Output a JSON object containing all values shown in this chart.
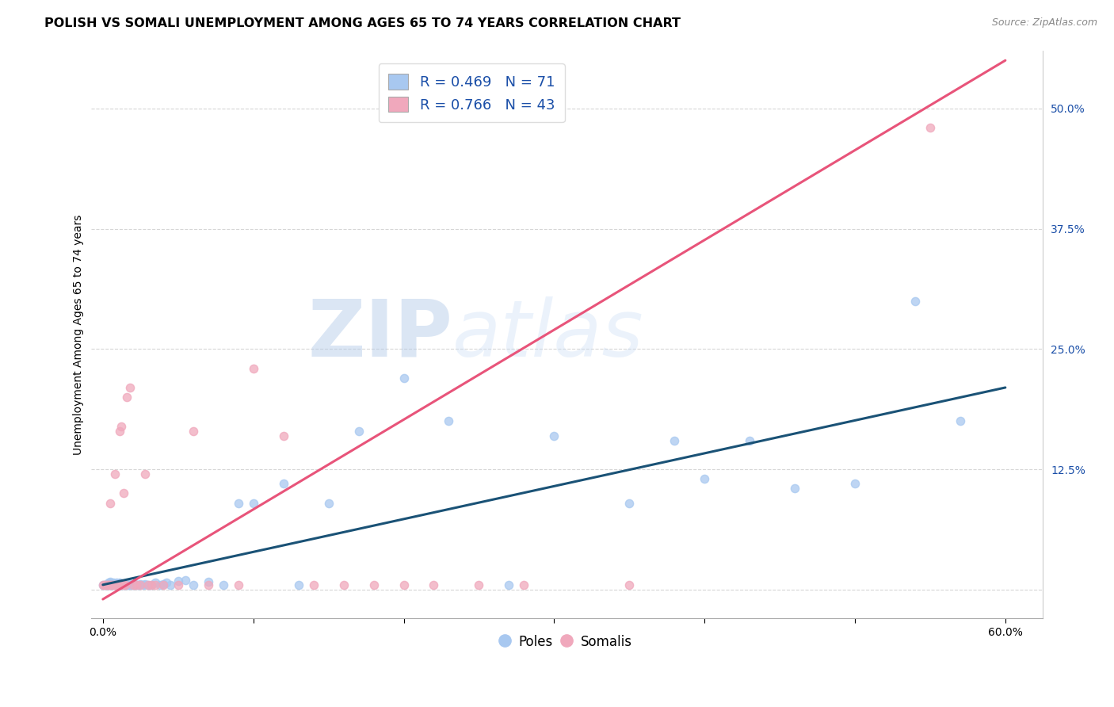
{
  "title": "POLISH VS SOMALI UNEMPLOYMENT AMONG AGES 65 TO 74 YEARS CORRELATION CHART",
  "source": "Source: ZipAtlas.com",
  "ylabel": "Unemployment Among Ages 65 to 74 years",
  "xlim_min": -0.008,
  "xlim_max": 0.625,
  "ylim_min": -0.03,
  "ylim_max": 0.56,
  "legend_label1": "Poles",
  "legend_label2": "Somalis",
  "blue_marker_color": "#A8C8F0",
  "pink_marker_color": "#F0A8BC",
  "blue_line_color": "#1A5276",
  "pink_line_color": "#E8547A",
  "blue_text_color": "#1B4FA8",
  "watermark_zip": "ZIP",
  "watermark_atlas": "atlas",
  "poles_x": [
    0.0,
    0.001,
    0.002,
    0.003,
    0.003,
    0.004,
    0.004,
    0.005,
    0.005,
    0.005,
    0.006,
    0.006,
    0.006,
    0.007,
    0.007,
    0.008,
    0.008,
    0.009,
    0.009,
    0.01,
    0.01,
    0.011,
    0.011,
    0.012,
    0.012,
    0.013,
    0.013,
    0.014,
    0.015,
    0.015,
    0.016,
    0.017,
    0.018,
    0.019,
    0.02,
    0.021,
    0.022,
    0.024,
    0.025,
    0.027,
    0.028,
    0.03,
    0.032,
    0.035,
    0.038,
    0.04,
    0.042,
    0.045,
    0.05,
    0.055,
    0.06,
    0.07,
    0.08,
    0.09,
    0.1,
    0.12,
    0.13,
    0.15,
    0.17,
    0.2,
    0.23,
    0.27,
    0.3,
    0.35,
    0.38,
    0.4,
    0.43,
    0.46,
    0.5,
    0.54,
    0.57
  ],
  "poles_y": [
    0.005,
    0.005,
    0.005,
    0.006,
    0.005,
    0.005,
    0.007,
    0.005,
    0.006,
    0.008,
    0.005,
    0.006,
    0.005,
    0.005,
    0.007,
    0.005,
    0.006,
    0.005,
    0.007,
    0.005,
    0.006,
    0.005,
    0.007,
    0.005,
    0.006,
    0.005,
    0.006,
    0.005,
    0.005,
    0.006,
    0.005,
    0.005,
    0.006,
    0.005,
    0.005,
    0.006,
    0.005,
    0.005,
    0.006,
    0.005,
    0.006,
    0.005,
    0.005,
    0.007,
    0.005,
    0.006,
    0.007,
    0.005,
    0.009,
    0.01,
    0.005,
    0.008,
    0.005,
    0.09,
    0.09,
    0.11,
    0.005,
    0.09,
    0.165,
    0.22,
    0.175,
    0.005,
    0.16,
    0.09,
    0.155,
    0.115,
    0.155,
    0.105,
    0.11,
    0.3,
    0.175
  ],
  "somalis_x": [
    0.0,
    0.001,
    0.002,
    0.003,
    0.004,
    0.005,
    0.005,
    0.006,
    0.007,
    0.008,
    0.008,
    0.009,
    0.01,
    0.011,
    0.012,
    0.013,
    0.014,
    0.015,
    0.016,
    0.018,
    0.02,
    0.022,
    0.025,
    0.028,
    0.03,
    0.032,
    0.035,
    0.04,
    0.05,
    0.06,
    0.07,
    0.09,
    0.1,
    0.12,
    0.14,
    0.16,
    0.18,
    0.2,
    0.22,
    0.25,
    0.28,
    0.35,
    0.55
  ],
  "somalis_y": [
    0.005,
    0.005,
    0.005,
    0.005,
    0.005,
    0.005,
    0.09,
    0.005,
    0.005,
    0.12,
    0.005,
    0.005,
    0.005,
    0.165,
    0.17,
    0.005,
    0.1,
    0.005,
    0.2,
    0.21,
    0.005,
    0.005,
    0.005,
    0.12,
    0.005,
    0.005,
    0.005,
    0.005,
    0.005,
    0.165,
    0.005,
    0.005,
    0.23,
    0.16,
    0.005,
    0.005,
    0.005,
    0.005,
    0.005,
    0.005,
    0.005,
    0.005,
    0.48
  ],
  "blue_trendline_x0": 0.0,
  "blue_trendline_y0": 0.005,
  "blue_trendline_x1": 0.6,
  "blue_trendline_y1": 0.21,
  "pink_trendline_x0": 0.0,
  "pink_trendline_y0": -0.01,
  "pink_trendline_x1": 0.6,
  "pink_trendline_y1": 0.55
}
